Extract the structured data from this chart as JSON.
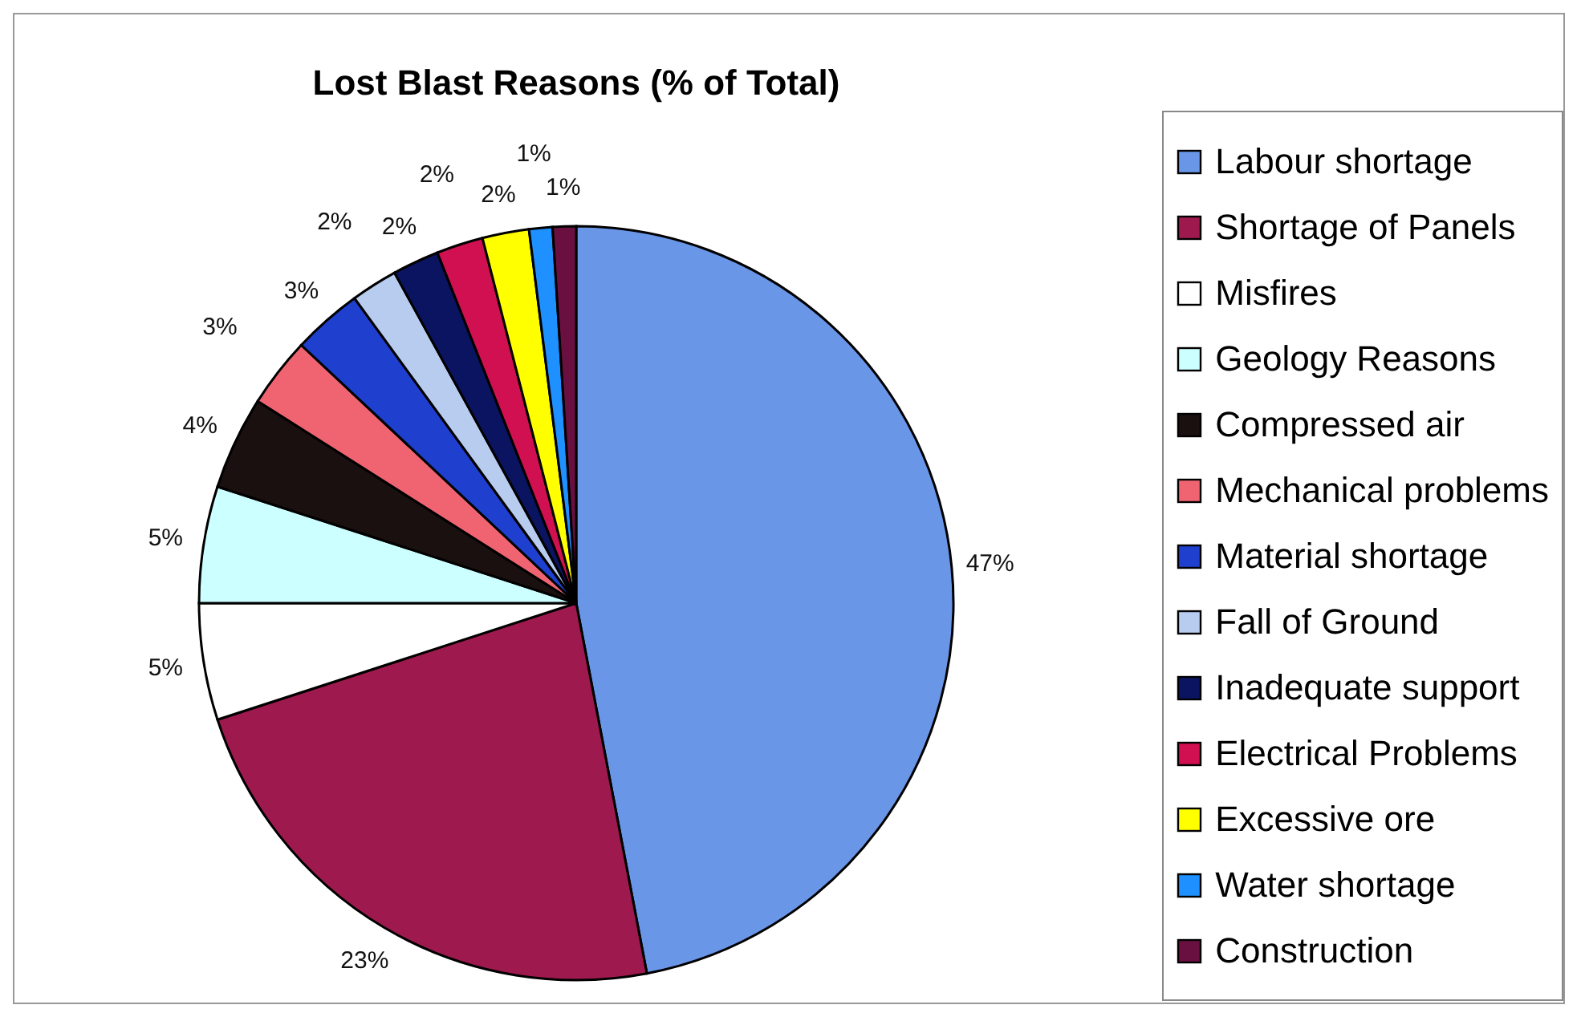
{
  "chart_data": {
    "type": "pie",
    "title": "Lost Blast Reasons (% of Total)",
    "categories": [
      "Labour shortage",
      "Shortage of Panels",
      "Misfires",
      "Geology Reasons",
      "Compressed air",
      "Mechanical problems",
      "Material shortage",
      "Fall of Ground",
      "Inadequate support",
      "Electrical Problems",
      "Excessive ore",
      "Water shortage",
      "Construction"
    ],
    "values": [
      47,
      23,
      5,
      5,
      4,
      3,
      3,
      2,
      2,
      2,
      2,
      1,
      1
    ],
    "value_labels": [
      "47%",
      "23%",
      "5%",
      "5%",
      "4%",
      "3%",
      "3%",
      "2%",
      "2%",
      "2%",
      "2%",
      "1%",
      "1%"
    ],
    "colors": [
      "#6a96e8",
      "#9e1a4e",
      "#ffffff",
      "#ccffff",
      "#1a1010",
      "#f06472",
      "#1f3fcf",
      "#b8ccf0",
      "#0a1460",
      "#d01050",
      "#ffff00",
      "#1e90ff",
      "#6a1040"
    ],
    "legend": "right"
  }
}
